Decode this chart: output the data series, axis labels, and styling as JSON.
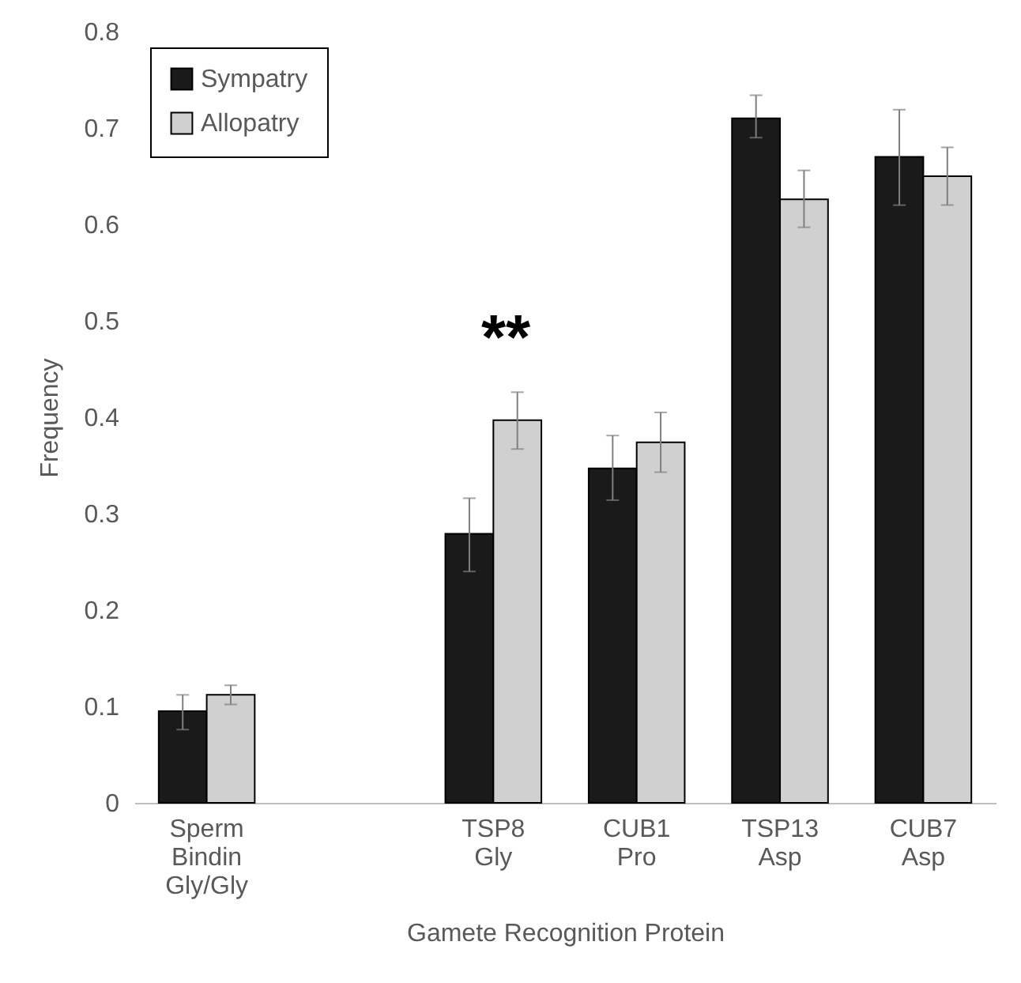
{
  "chart_data": {
    "type": "bar",
    "xlabel": "Gamete Recognition Protein",
    "ylabel": "Frequency",
    "categories": [
      "Sperm Bindin Gly/Gly",
      null,
      "TSP8 Gly",
      "CUB1 Pro",
      "TSP13 Asp",
      "CUB7 Asp"
    ],
    "series": [
      {
        "name": "Sympatry",
        "color": "#1a1a1a",
        "values": [
          0.095,
          null,
          0.279,
          0.347,
          0.71,
          0.67
        ],
        "errors": [
          [
            0.076,
            0.112
          ],
          null,
          [
            0.24,
            0.316
          ],
          [
            0.314,
            0.381
          ],
          [
            0.69,
            0.734
          ],
          [
            0.62,
            0.719
          ]
        ]
      },
      {
        "name": "Allopatry",
        "color": "#d0d0d0",
        "values": [
          0.112,
          null,
          0.397,
          0.374,
          0.626,
          0.65
        ],
        "errors": [
          [
            0.102,
            0.122
          ],
          null,
          [
            0.367,
            0.426
          ],
          [
            0.343,
            0.405
          ],
          [
            0.597,
            0.656
          ],
          [
            0.62,
            0.68
          ]
        ]
      }
    ],
    "ylim": [
      0,
      0.8
    ],
    "yticks": [
      0,
      0.1,
      0.2,
      0.3,
      0.4,
      0.5,
      0.6,
      0.7,
      0.8
    ],
    "grid": false,
    "legend": "top left",
    "annotations": [
      "**"
    ]
  }
}
